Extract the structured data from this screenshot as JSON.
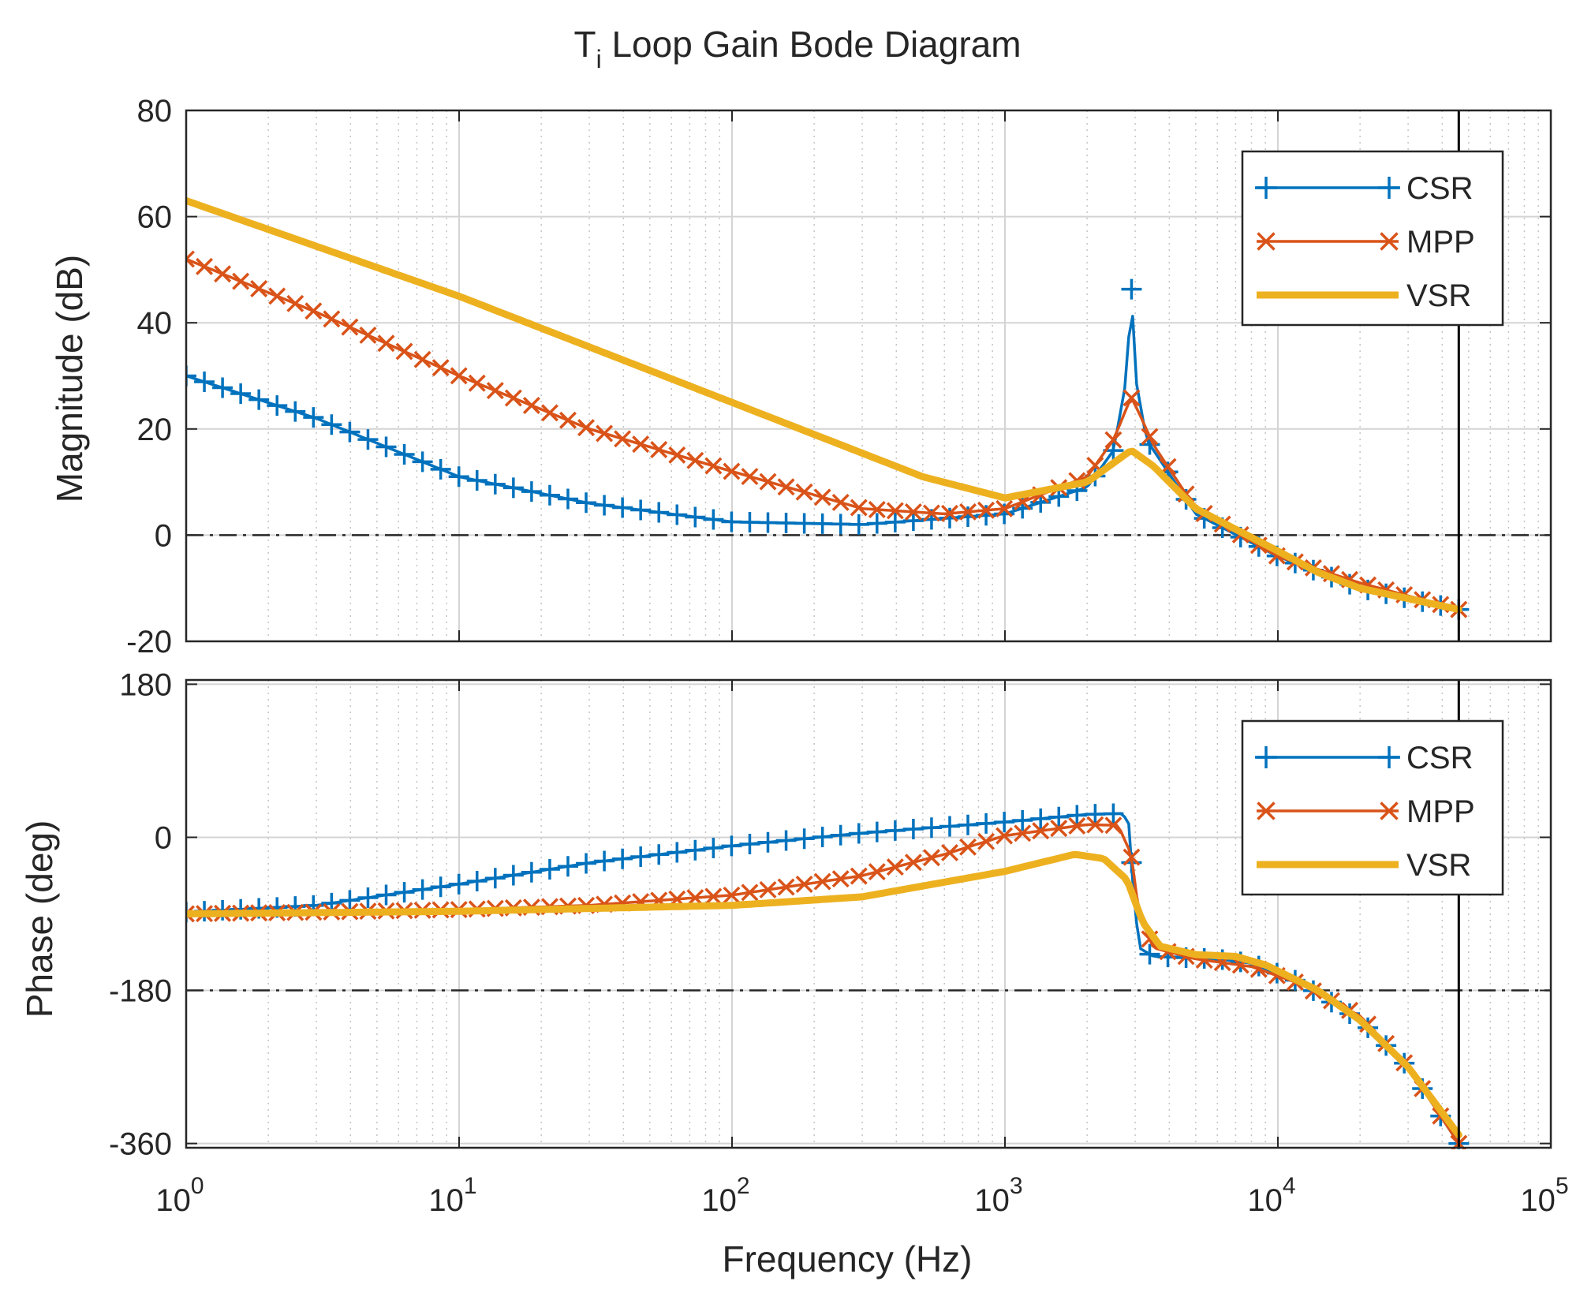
{
  "chart_data": {
    "type": "line",
    "title": "T",
    "title_subscript": "i",
    "title_rest": " Loop Gain Bode Diagram",
    "xlabel": "Frequency  (Hz)",
    "xscale": "log",
    "xlim": [
      1,
      100000
    ],
    "x_tick_base": "10",
    "x_tick_exponents": [
      "0",
      "1",
      "2",
      "3",
      "4",
      "5"
    ],
    "colors": {
      "CSR": "#0072bd",
      "MPP": "#d95319",
      "VSR": "#edb120"
    },
    "legend_labels": [
      "CSR",
      "MPP",
      "VSR"
    ],
    "vertical_marker_hz": 46000,
    "magnitude": {
      "ylabel": "Magnitude (dB)",
      "ylim": [
        -20,
        80
      ],
      "ticks": [
        "-20",
        "0",
        "20",
        "40",
        "60",
        "80"
      ],
      "reference_line": 0,
      "legend_position": "top-right",
      "series": [
        {
          "name": "CSR",
          "marker": "plus",
          "points": [
            [
              1,
              30
            ],
            [
              3,
              22
            ],
            [
              10,
              11
            ],
            [
              30,
              6
            ],
            [
              100,
              2.5
            ],
            [
              300,
              2
            ],
            [
              1000,
              4
            ],
            [
              2000,
              9
            ],
            [
              2500,
              16
            ],
            [
              2800,
              30
            ],
            [
              2900,
              48
            ],
            [
              3000,
              30
            ],
            [
              3300,
              18
            ],
            [
              5000,
              4
            ],
            [
              10000,
              -4
            ],
            [
              20000,
              -10
            ],
            [
              46000,
              -14
            ]
          ]
        },
        {
          "name": "MPP",
          "marker": "x",
          "points": [
            [
              1,
              52
            ],
            [
              3,
              42
            ],
            [
              10,
              30
            ],
            [
              30,
              20
            ],
            [
              100,
              12
            ],
            [
              300,
              5
            ],
            [
              600,
              4
            ],
            [
              1000,
              5
            ],
            [
              2000,
              11
            ],
            [
              2500,
              18
            ],
            [
              2900,
              26
            ],
            [
              3100,
              23
            ],
            [
              3500,
              17
            ],
            [
              5000,
              5
            ],
            [
              10000,
              -4
            ],
            [
              20000,
              -9
            ],
            [
              46000,
              -14
            ]
          ]
        },
        {
          "name": "VSR",
          "marker": "none",
          "points": [
            [
              1,
              63
            ],
            [
              10,
              45
            ],
            [
              100,
              25
            ],
            [
              500,
              11
            ],
            [
              1000,
              7
            ],
            [
              2000,
              10
            ],
            [
              2900,
              16
            ],
            [
              3500,
              13
            ],
            [
              5000,
              5
            ],
            [
              10000,
              -3
            ],
            [
              14000,
              -7
            ],
            [
              20000,
              -10
            ],
            [
              46000,
              -14
            ]
          ]
        }
      ]
    },
    "phase": {
      "ylabel": "Phase (deg)",
      "ylim": [
        -365,
        185
      ],
      "ticks": [
        "-360",
        "-180",
        "0",
        "180"
      ],
      "reference_line": -180,
      "legend_position": "top-right",
      "series": [
        {
          "name": "CSR",
          "marker": "plus",
          "points": [
            [
              1,
              -88
            ],
            [
              3,
              -80
            ],
            [
              10,
              -55
            ],
            [
              30,
              -30
            ],
            [
              100,
              -10
            ],
            [
              300,
              5
            ],
            [
              1000,
              18
            ],
            [
              2000,
              27
            ],
            [
              2700,
              28
            ],
            [
              2850,
              15
            ],
            [
              2950,
              -60
            ],
            [
              3100,
              -130
            ],
            [
              3500,
              -140
            ],
            [
              6000,
              -143
            ],
            [
              8000,
              -148
            ],
            [
              12000,
              -170
            ],
            [
              20000,
              -215
            ],
            [
              30000,
              -270
            ],
            [
              46000,
              -360
            ]
          ]
        },
        {
          "name": "MPP",
          "marker": "x",
          "points": [
            [
              1,
              -90
            ],
            [
              3,
              -88
            ],
            [
              10,
              -85
            ],
            [
              30,
              -80
            ],
            [
              100,
              -68
            ],
            [
              300,
              -45
            ],
            [
              600,
              -20
            ],
            [
              1000,
              2
            ],
            [
              2000,
              15
            ],
            [
              2600,
              14
            ],
            [
              2900,
              -20
            ],
            [
              3100,
              -90
            ],
            [
              3500,
              -130
            ],
            [
              5000,
              -143
            ],
            [
              8000,
              -152
            ],
            [
              12000,
              -172
            ],
            [
              20000,
              -210
            ],
            [
              30000,
              -270
            ],
            [
              46000,
              -360
            ]
          ]
        },
        {
          "name": "VSR",
          "marker": "none",
          "points": [
            [
              1,
              -90
            ],
            [
              10,
              -87
            ],
            [
              100,
              -80
            ],
            [
              300,
              -70
            ],
            [
              1000,
              -40
            ],
            [
              1800,
              -20
            ],
            [
              2300,
              -25
            ],
            [
              2800,
              -50
            ],
            [
              3200,
              -100
            ],
            [
              3700,
              -128
            ],
            [
              5000,
              -138
            ],
            [
              7000,
              -140
            ],
            [
              9000,
              -150
            ],
            [
              14000,
              -180
            ],
            [
              20000,
              -215
            ],
            [
              30000,
              -270
            ],
            [
              46000,
              -350
            ]
          ]
        }
      ]
    }
  }
}
